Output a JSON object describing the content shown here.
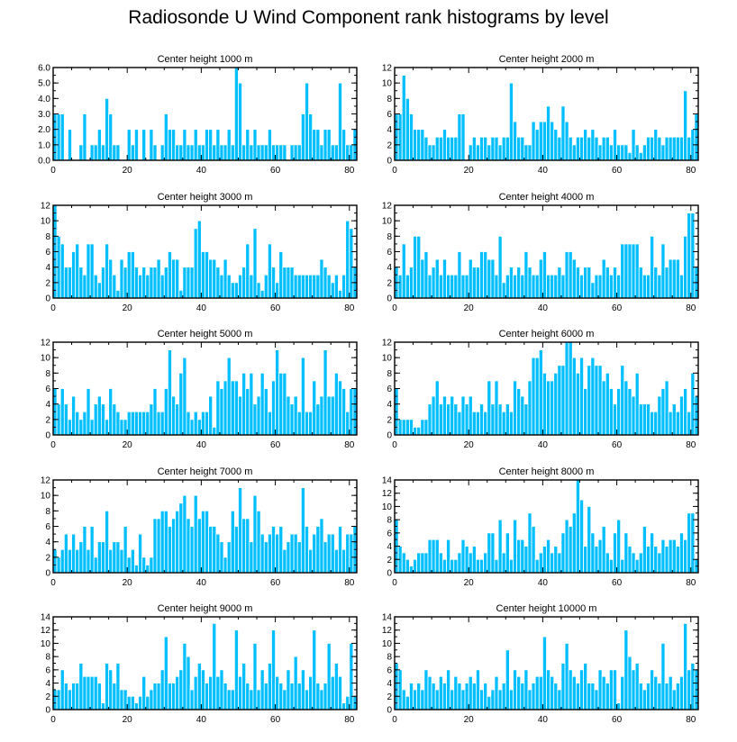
{
  "figure": {
    "title": "Radiosonde U Wind Component rank histograms by level"
  },
  "chart_data": [
    {
      "type": "bar",
      "title": "Center height 1000 m",
      "xlim": [
        0,
        82
      ],
      "xticks": [
        0,
        20,
        40,
        60,
        80
      ],
      "ylim": [
        0,
        6
      ],
      "yticks": [
        0,
        1,
        2,
        3,
        4,
        5,
        6
      ],
      "ytick_labels": [
        "0.0",
        "1.0",
        "2.0",
        "3.0",
        "4.0",
        "5.0",
        "6.0"
      ],
      "minor_ytick_step": 0.5,
      "values": [
        3,
        3,
        3,
        0,
        2,
        0,
        0,
        1,
        3,
        0,
        1,
        1,
        2,
        1,
        4,
        3,
        1,
        1,
        0,
        0,
        2,
        1,
        2,
        0,
        2,
        0,
        2,
        1,
        0,
        1,
        3,
        2,
        2,
        1,
        1,
        2,
        1,
        1,
        2,
        1,
        1,
        2,
        2,
        1,
        2,
        1,
        1,
        2,
        1,
        6,
        5,
        1,
        2,
        1,
        2,
        1,
        1,
        1,
        2,
        1,
        1,
        1,
        1,
        0,
        1,
        1,
        1,
        3,
        5,
        3,
        2,
        2,
        1,
        2,
        2,
        1,
        1,
        5,
        2,
        1,
        1,
        2
      ]
    },
    {
      "type": "bar",
      "title": "Center height 2000 m",
      "xlim": [
        0,
        82
      ],
      "xticks": [
        0,
        20,
        40,
        60,
        80
      ],
      "ylim": [
        0,
        12
      ],
      "yticks": [
        0,
        2,
        4,
        6,
        8,
        10,
        12
      ],
      "ytick_labels": [
        "0",
        "2",
        "4",
        "6",
        "8",
        "10",
        "12"
      ],
      "minor_ytick_step": 1,
      "values": [
        6,
        6,
        11,
        8,
        6,
        4,
        4,
        4,
        3,
        2,
        2,
        3,
        3,
        4,
        3,
        3,
        3,
        6,
        6,
        0,
        2,
        3,
        2,
        3,
        3,
        2,
        3,
        3,
        2,
        3,
        3,
        10,
        5,
        3,
        3,
        2,
        2,
        5,
        4,
        5,
        5,
        7,
        5,
        4,
        3,
        7,
        5,
        3,
        2,
        3,
        3,
        4,
        3,
        4,
        3,
        2,
        3,
        3,
        2,
        4,
        2,
        2,
        2,
        1,
        4,
        2,
        1,
        2,
        3,
        3,
        4,
        3,
        2,
        3,
        3,
        3,
        3,
        3,
        9,
        3,
        4,
        6
      ]
    },
    {
      "type": "bar",
      "title": "Center height 3000 m",
      "xlim": [
        0,
        82
      ],
      "xticks": [
        0,
        20,
        40,
        60,
        80
      ],
      "ylim": [
        0,
        12
      ],
      "yticks": [
        0,
        2,
        4,
        6,
        8,
        10,
        12
      ],
      "ytick_labels": [
        "0",
        "2",
        "4",
        "6",
        "8",
        "10",
        "12"
      ],
      "minor_ytick_step": 1,
      "values": [
        12,
        8,
        7,
        4,
        4,
        6,
        7,
        4,
        3,
        7,
        7,
        3,
        2,
        4,
        7,
        5,
        3,
        1,
        5,
        4,
        6,
        6,
        4,
        3,
        4,
        3,
        4,
        4,
        5,
        3,
        4,
        6,
        5,
        5,
        1,
        4,
        4,
        4,
        9,
        10,
        6,
        6,
        5,
        5,
        4,
        3,
        5,
        3,
        2,
        2,
        3,
        4,
        7,
        3,
        9,
        2,
        1,
        3,
        7,
        4,
        2,
        6,
        4,
        4,
        4,
        3,
        3,
        3,
        3,
        3,
        3,
        3,
        5,
        4,
        3,
        2,
        3,
        1,
        3,
        10,
        9,
        4
      ]
    },
    {
      "type": "bar",
      "title": "Center height 4000 m",
      "xlim": [
        0,
        82
      ],
      "xticks": [
        0,
        20,
        40,
        60,
        80
      ],
      "ylim": [
        0,
        12
      ],
      "yticks": [
        0,
        2,
        4,
        6,
        8,
        10,
        12
      ],
      "ytick_labels": [
        "0",
        "2",
        "4",
        "6",
        "8",
        "10",
        "12"
      ],
      "minor_ytick_step": 1,
      "values": [
        4,
        3,
        7,
        3,
        4,
        8,
        8,
        5,
        6,
        3,
        4,
        5,
        3,
        5,
        3,
        3,
        3,
        6,
        3,
        3,
        5,
        4,
        4,
        6,
        6,
        5,
        5,
        3,
        8,
        2,
        3,
        4,
        3,
        4,
        3,
        6,
        4,
        3,
        3,
        5,
        6,
        3,
        3,
        3,
        4,
        3,
        6,
        6,
        5,
        4,
        3,
        4,
        4,
        2,
        3,
        3,
        5,
        4,
        3,
        4,
        3,
        7,
        7,
        7,
        7,
        7,
        4,
        3,
        3,
        8,
        4,
        3,
        7,
        4,
        5,
        5,
        5,
        3,
        8,
        11,
        11,
        4
      ]
    },
    {
      "type": "bar",
      "title": "Center height 5000 m",
      "xlim": [
        0,
        82
      ],
      "xticks": [
        0,
        20,
        40,
        60,
        80
      ],
      "ylim": [
        0,
        12
      ],
      "yticks": [
        0,
        2,
        4,
        6,
        8,
        10,
        12
      ],
      "ytick_labels": [
        "0",
        "2",
        "4",
        "6",
        "8",
        "10",
        "12"
      ],
      "minor_ytick_step": 1,
      "values": [
        6,
        4,
        6,
        4,
        2,
        5,
        3,
        2,
        3,
        6,
        2,
        4,
        5,
        4,
        2,
        6,
        4,
        3,
        2,
        2,
        3,
        3,
        3,
        3,
        3,
        3,
        4,
        6,
        3,
        3,
        6,
        11,
        5,
        4,
        8,
        10,
        3,
        2,
        3,
        2,
        3,
        3,
        5,
        1,
        7,
        6,
        7,
        10,
        7,
        7,
        5,
        8,
        6,
        8,
        4,
        5,
        8,
        6,
        3,
        7,
        11,
        8,
        8,
        5,
        4,
        5,
        3,
        10,
        3,
        3,
        7,
        4,
        5,
        11,
        5,
        5,
        8,
        7,
        6,
        3,
        6,
        6
      ]
    },
    {
      "type": "bar",
      "title": "Center height 6000 m",
      "xlim": [
        0,
        82
      ],
      "xticks": [
        0,
        20,
        40,
        60,
        80
      ],
      "ylim": [
        0,
        12
      ],
      "yticks": [
        0,
        2,
        4,
        6,
        8,
        10,
        12
      ],
      "ytick_labels": [
        "0",
        "2",
        "4",
        "6",
        "8",
        "10",
        "12"
      ],
      "minor_ytick_step": 1,
      "values": [
        6,
        2,
        2,
        2,
        2,
        1,
        1,
        2,
        2,
        4,
        5,
        7,
        4,
        5,
        4,
        5,
        4,
        3,
        5,
        4,
        5,
        3,
        3,
        4,
        3,
        7,
        4,
        7,
        4,
        3,
        4,
        3,
        7,
        6,
        5,
        4,
        7,
        10,
        10,
        11,
        8,
        7,
        7,
        8,
        9,
        9,
        12,
        12,
        10,
        8,
        10,
        6,
        9,
        10,
        9,
        9,
        7,
        8,
        6,
        4,
        6,
        9,
        7,
        6,
        5,
        8,
        4,
        4,
        4,
        3,
        3,
        5,
        6,
        7,
        3,
        4,
        3,
        5,
        6,
        3,
        8,
        5
      ]
    },
    {
      "type": "bar",
      "title": "Center height 7000 m",
      "xlim": [
        0,
        82
      ],
      "xticks": [
        0,
        20,
        40,
        60,
        80
      ],
      "ylim": [
        0,
        12
      ],
      "yticks": [
        0,
        2,
        4,
        6,
        8,
        10,
        12
      ],
      "ytick_labels": [
        "0",
        "2",
        "4",
        "6",
        "8",
        "10",
        "12"
      ],
      "minor_ytick_step": 1,
      "values": [
        3,
        2,
        3,
        5,
        3,
        5,
        3,
        4,
        6,
        3,
        6,
        2,
        4,
        4,
        8,
        3,
        4,
        4,
        3,
        6,
        2,
        3,
        1,
        5,
        2,
        1,
        2,
        7,
        7,
        8,
        8,
        6,
        7,
        8,
        9,
        10,
        7,
        6,
        10,
        7,
        8,
        8,
        6,
        6,
        5,
        4,
        2,
        4,
        8,
        6,
        11,
        7,
        7,
        4,
        10,
        8,
        5,
        4,
        5,
        6,
        5,
        6,
        3,
        4,
        5,
        5,
        4,
        11,
        6,
        3,
        5,
        6,
        7,
        4,
        5,
        5,
        3,
        6,
        3,
        5,
        5,
        6
      ]
    },
    {
      "type": "bar",
      "title": "Center height 8000 m",
      "xlim": [
        0,
        82
      ],
      "xticks": [
        0,
        20,
        40,
        60,
        80
      ],
      "ylim": [
        0,
        14
      ],
      "yticks": [
        0,
        2,
        4,
        6,
        8,
        10,
        12,
        14
      ],
      "ytick_labels": [
        "0",
        "2",
        "4",
        "6",
        "8",
        "10",
        "12",
        "14"
      ],
      "minor_ytick_step": 1,
      "values": [
        8,
        4,
        3,
        2,
        1,
        2,
        3,
        3,
        3,
        5,
        5,
        5,
        3,
        2,
        5,
        2,
        2,
        3,
        5,
        4,
        3,
        4,
        2,
        2,
        3,
        6,
        6,
        2,
        8,
        3,
        6,
        2,
        8,
        5,
        5,
        4,
        9,
        7,
        2,
        3,
        4,
        5,
        3,
        4,
        3,
        6,
        8,
        7,
        9,
        14,
        11,
        4,
        10,
        6,
        4,
        5,
        7,
        3,
        2,
        6,
        8,
        2,
        6,
        4,
        3,
        2,
        3,
        7,
        4,
        6,
        4,
        3,
        5,
        4,
        5,
        5,
        4,
        6,
        5,
        9,
        9,
        2
      ]
    },
    {
      "type": "bar",
      "title": "Center height 9000 m",
      "xlim": [
        0,
        82
      ],
      "xticks": [
        0,
        20,
        40,
        60,
        80
      ],
      "ylim": [
        0,
        14
      ],
      "yticks": [
        0,
        2,
        4,
        6,
        8,
        10,
        12,
        14
      ],
      "ytick_labels": [
        "0",
        "2",
        "4",
        "6",
        "8",
        "10",
        "12",
        "14"
      ],
      "minor_ytick_step": 1,
      "values": [
        3,
        3,
        6,
        4,
        3,
        4,
        4,
        7,
        5,
        5,
        5,
        5,
        4,
        1,
        7,
        6,
        4,
        7,
        3,
        3,
        2,
        2,
        1,
        2,
        5,
        2,
        3,
        4,
        4,
        6,
        11,
        4,
        4,
        5,
        6,
        10,
        8,
        3,
        5,
        7,
        6,
        4,
        5,
        13,
        5,
        6,
        4,
        3,
        3,
        12,
        5,
        7,
        4,
        3,
        10,
        3,
        6,
        4,
        7,
        12,
        5,
        4,
        3,
        6,
        4,
        8,
        4,
        6,
        3,
        5,
        12,
        4,
        3,
        4,
        10,
        5,
        7,
        5,
        1,
        2,
        10,
        2
      ]
    },
    {
      "type": "bar",
      "title": "Center height 10000 m",
      "xlim": [
        0,
        82
      ],
      "xticks": [
        0,
        20,
        40,
        60,
        80
      ],
      "ylim": [
        0,
        14
      ],
      "yticks": [
        0,
        2,
        4,
        6,
        8,
        10,
        12,
        14
      ],
      "ytick_labels": [
        "0",
        "2",
        "4",
        "6",
        "8",
        "10",
        "12",
        "14"
      ],
      "minor_ytick_step": 1,
      "values": [
        7,
        6,
        3,
        2,
        4,
        3,
        4,
        3,
        6,
        5,
        4,
        3,
        5,
        4,
        6,
        3,
        5,
        4,
        3,
        4,
        5,
        4,
        6,
        3,
        4,
        2,
        3,
        5,
        3,
        4,
        9,
        3,
        6,
        5,
        4,
        6,
        3,
        4,
        5,
        5,
        11,
        6,
        5,
        4,
        3,
        7,
        10,
        6,
        5,
        4,
        6,
        7,
        4,
        4,
        3,
        6,
        5,
        4,
        6,
        6,
        1,
        5,
        12,
        8,
        6,
        7,
        4,
        3,
        4,
        6,
        5,
        4,
        10,
        4,
        5,
        3,
        4,
        5,
        13,
        6,
        7,
        6
      ]
    }
  ],
  "style": {
    "bar_color": "#00bfff",
    "bar_edge_color": "#ffffff",
    "axis_color": "#000000"
  }
}
